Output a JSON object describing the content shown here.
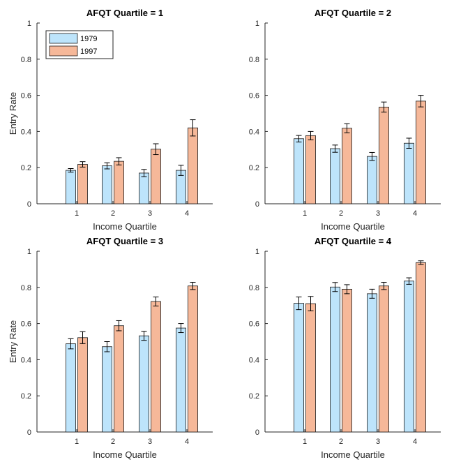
{
  "chart_data": [
    {
      "type": "bar",
      "title": "AFQT Quartile = 1",
      "xlabel": "Income Quartile",
      "ylabel": "Entry Rate",
      "categories": [
        "1",
        "2",
        "3",
        "4"
      ],
      "ylim": [
        0,
        1
      ],
      "yticks": [
        "0",
        "0.2",
        "0.4",
        "0.6",
        "0.8",
        "1"
      ],
      "series": [
        {
          "name": "1979",
          "values": [
            0.185,
            0.21,
            0.17,
            0.185
          ],
          "errors": [
            0.01,
            0.017,
            0.02,
            0.028
          ]
        },
        {
          "name": "1997",
          "values": [
            0.218,
            0.235,
            0.302,
            0.42
          ],
          "errors": [
            0.015,
            0.02,
            0.03,
            0.045
          ]
        }
      ],
      "legend": "top-left"
    },
    {
      "type": "bar",
      "title": "AFQT Quartile = 2",
      "xlabel": "Income Quartile",
      "ylabel": "",
      "categories": [
        "1",
        "2",
        "3",
        "4"
      ],
      "ylim": [
        0,
        1
      ],
      "yticks": [
        "0",
        "0.2",
        "0.4",
        "0.6",
        "0.8",
        "1"
      ],
      "series": [
        {
          "name": "1979",
          "values": [
            0.36,
            0.305,
            0.262,
            0.335
          ],
          "errors": [
            0.018,
            0.02,
            0.022,
            0.028
          ]
        },
        {
          "name": "1997",
          "values": [
            0.377,
            0.418,
            0.535,
            0.568
          ],
          "errors": [
            0.023,
            0.025,
            0.028,
            0.032
          ]
        }
      ]
    },
    {
      "type": "bar",
      "title": "AFQT Quartile = 3",
      "xlabel": "Income Quartile",
      "ylabel": "Entry Rate",
      "categories": [
        "1",
        "2",
        "3",
        "4"
      ],
      "ylim": [
        0,
        1
      ],
      "yticks": [
        "0",
        "0.2",
        "0.4",
        "0.6",
        "0.8",
        "1"
      ],
      "series": [
        {
          "name": "1979",
          "values": [
            0.488,
            0.472,
            0.532,
            0.575
          ],
          "errors": [
            0.028,
            0.028,
            0.025,
            0.025
          ]
        },
        {
          "name": "1997",
          "values": [
            0.522,
            0.588,
            0.722,
            0.808
          ],
          "errors": [
            0.033,
            0.028,
            0.025,
            0.02
          ]
        }
      ]
    },
    {
      "type": "bar",
      "title": "AFQT Quartile = 4",
      "xlabel": "Income Quartile",
      "ylabel": "",
      "categories": [
        "1",
        "2",
        "3",
        "4"
      ],
      "ylim": [
        0,
        1
      ],
      "yticks": [
        "0",
        "0.2",
        "0.4",
        "0.6",
        "0.8",
        "1"
      ],
      "series": [
        {
          "name": "1979",
          "values": [
            0.712,
            0.802,
            0.765,
            0.835
          ],
          "errors": [
            0.035,
            0.025,
            0.025,
            0.018
          ]
        },
        {
          "name": "1997",
          "values": [
            0.71,
            0.79,
            0.808,
            0.937
          ],
          "errors": [
            0.04,
            0.025,
            0.02,
            0.01
          ]
        }
      ]
    }
  ],
  "colors": {
    "series_1979": "#bde4fb",
    "series_1997": "#f6b899",
    "axis": "#262626"
  }
}
